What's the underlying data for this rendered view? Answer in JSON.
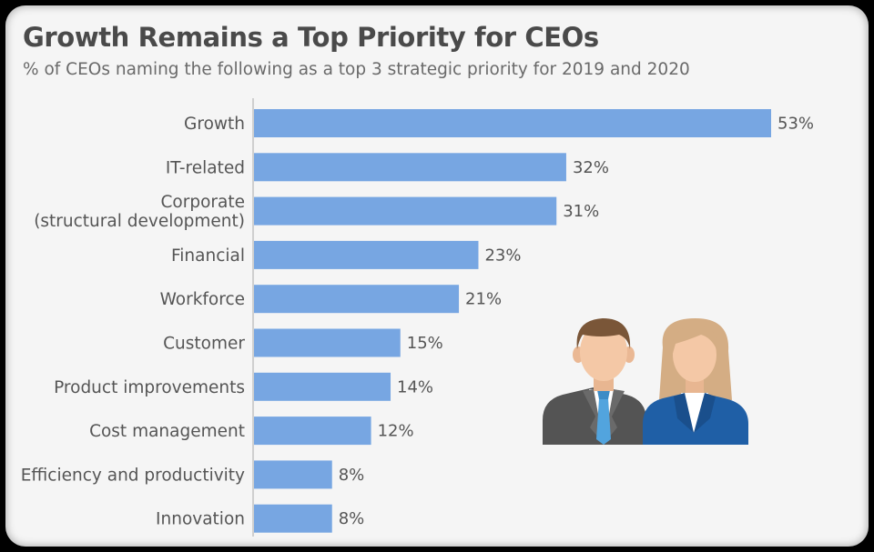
{
  "chart_data": {
    "type": "bar",
    "orientation": "horizontal",
    "title": "Growth Remains a Top Priority for CEOs",
    "subtitle": "% of CEOs naming the following as a top 3 strategic priority for 2019 and 2020",
    "categories": [
      "Growth",
      "IT-related",
      [
        "Corporate",
        "(structural development)"
      ],
      "Financial",
      "Workforce",
      "Customer",
      "Product improvements",
      "Cost management",
      "Efficiency and productivity",
      "Innovation"
    ],
    "values": [
      53,
      32,
      31,
      23,
      21,
      15,
      14,
      12,
      8,
      8
    ],
    "value_labels": [
      "53%",
      "32%",
      "31%",
      "23%",
      "21%",
      "15%",
      "14%",
      "12%",
      "8%",
      "8%"
    ],
    "xlim": [
      0,
      53
    ],
    "grid": false,
    "bar_color": "#77a6e2"
  },
  "illustration": {
    "icon": "business-people-icon",
    "colors": {
      "skin": "#f4c8a6",
      "male_hair": "#7a5638",
      "female_hair": "#d4ad84",
      "male_suit": "#545454",
      "female_suit": "#1f5fa6",
      "tie": "#52a4de"
    }
  }
}
